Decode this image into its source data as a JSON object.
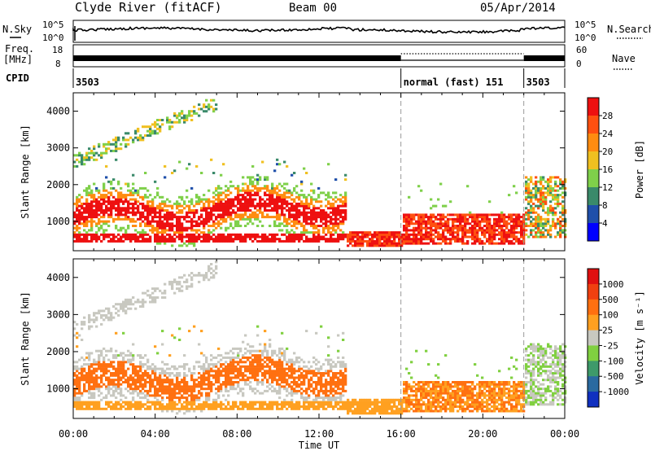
{
  "header": {
    "station": "Clyde River (fitACF)",
    "beam": "Beam 00",
    "date": "05/Apr/2014"
  },
  "side_labels": {
    "nsky": "N.Sky",
    "nsearch": "N.Search",
    "freq": "Freq.",
    "freq_unit": "[MHz]",
    "nave": "Nave",
    "cpid": "CPID"
  },
  "noise_ticks": {
    "left_top": "10^5",
    "left_bottom": "10^0",
    "right_top": "10^5",
    "right_bottom": "10^0"
  },
  "freq_ticks": {
    "left_top": "18",
    "left_bottom": "8",
    "right_top": "60",
    "right_bottom": "0"
  },
  "cpid_segments": [
    {
      "label": "3503",
      "start_h": 0,
      "end_h": 16
    },
    {
      "label": "normal (fast) 151",
      "start_h": 16,
      "end_h": 22
    },
    {
      "label": "3503",
      "start_h": 22,
      "end_h": 24
    }
  ],
  "chart_data": [
    {
      "type": "heatmap",
      "ylabel": "Slant Range [km]",
      "xlabel": "Time UT",
      "x_ticks": [
        "00:00",
        "04:00",
        "08:00",
        "12:00",
        "16:00",
        "20:00",
        "00:00"
      ],
      "y_ticks": [
        "1000",
        "2000",
        "3000",
        "4000"
      ],
      "ylim": [
        200,
        4500
      ],
      "xlim_hours": [
        0,
        24
      ],
      "colorbar": {
        "label": "Power [dB]",
        "ticks": [
          "4",
          "8",
          "12",
          "16",
          "20",
          "24",
          "28"
        ],
        "colors": [
          "#0000ff",
          "#1f4faa",
          "#3a8a6a",
          "#7fd04a",
          "#f0c020",
          "#ff8c10",
          "#ff5010",
          "#ee1010"
        ]
      }
    },
    {
      "type": "heatmap",
      "ylabel": "Slant Range [km]",
      "xlabel": "Time UT",
      "x_ticks": [
        "00:00",
        "04:00",
        "08:00",
        "12:00",
        "16:00",
        "20:00",
        "00:00"
      ],
      "y_ticks": [
        "1000",
        "2000",
        "3000",
        "4000"
      ],
      "ylim": [
        200,
        4500
      ],
      "xlim_hours": [
        0,
        24
      ],
      "colorbar": {
        "label": "Velocity [m s⁻¹]",
        "ticks": [
          "1000",
          "500",
          "100",
          "25",
          "-25",
          "-100",
          "-500",
          "-1000"
        ],
        "colors": [
          "#1030c0",
          "#2a6aa0",
          "#3e9a6a",
          "#80d040",
          "#c8c8c0",
          "#ffa020",
          "#ff7010",
          "#f04010",
          "#e01010"
        ]
      }
    }
  ]
}
